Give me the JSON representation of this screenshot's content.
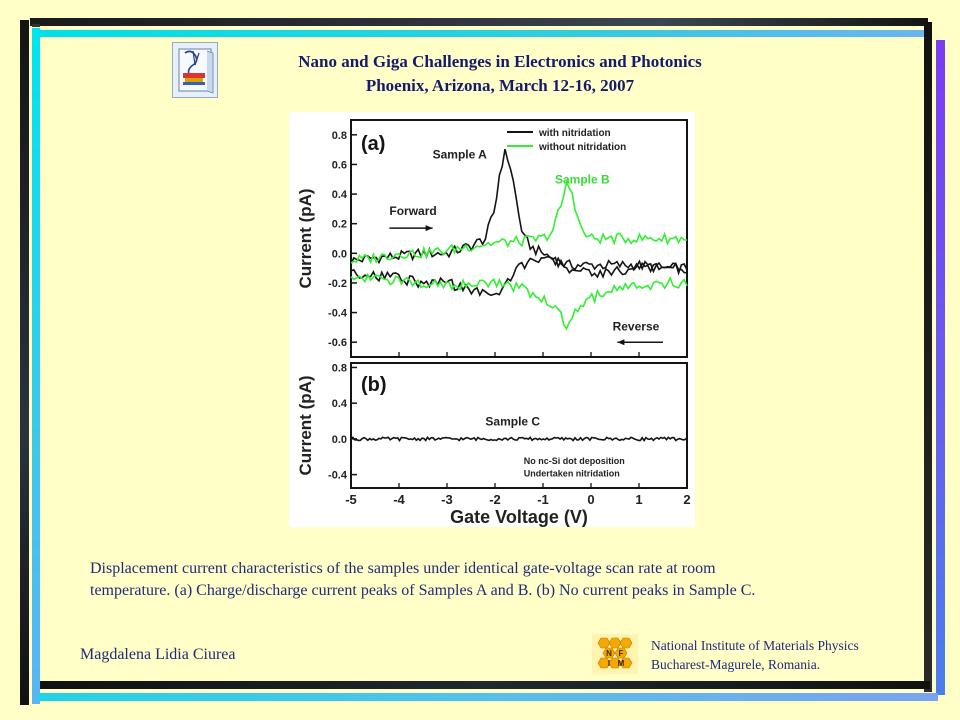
{
  "header": {
    "title_line1": "Nano and Giga Challenges in Electronics and Photonics",
    "title_line2": "Phoenix, Arizona, March 12-16, 2007"
  },
  "caption": {
    "line1": "Displacement current characteristics of the samples under identical gate-voltage scan rate at room",
    "line2": "temperature. (a) Charge/discharge current peaks of Samples A and B. (b) No current peaks in Sample C."
  },
  "footer": {
    "author": "Magdalena Lidia Ciurea",
    "institute_line1": "National Institute of Materials Physics",
    "institute_line2": "Bucharest-Magurele, Romania.",
    "logo_text": [
      "N",
      "F",
      "I",
      "M"
    ]
  },
  "colors": {
    "title": "#151a6e",
    "text": "#202a7a",
    "background": "#ffffc7",
    "series_black": "#141414",
    "series_green": "#33ee33"
  },
  "chart_data": [
    {
      "type": "line",
      "panel_label": "(a)",
      "xlabel": "Gate Voltage (V)",
      "ylabel": "Current (pA)",
      "xlim": [
        -5,
        2
      ],
      "ylim": [
        -0.7,
        0.9
      ],
      "yticks": [
        "0.8",
        "0.6",
        "0.4",
        "0.2",
        "0.0",
        "-0.2",
        "-0.4",
        "-0.6"
      ],
      "ytick_values": [
        0.8,
        0.6,
        0.4,
        0.2,
        0.0,
        -0.2,
        -0.4,
        -0.6
      ],
      "legend": [
        {
          "label": "with nitridation",
          "color": "#141414"
        },
        {
          "label": "without nitridation",
          "color": "#33ee33"
        }
      ],
      "legend_position": "top-right",
      "annotations": [
        {
          "text": "Sample A",
          "x": -3.3,
          "y": 0.64
        },
        {
          "text": "Sample B",
          "x": -0.75,
          "y": 0.47
        },
        {
          "text": "Forward",
          "x": -4.2,
          "y": 0.26
        },
        {
          "text": "Reverse",
          "x": 0.45,
          "y": -0.52
        }
      ],
      "series": [
        {
          "name": "with nitridation",
          "color": "#141414",
          "x": [
            -5,
            -4.5,
            -4,
            -3.5,
            -3,
            -2.5,
            -2.2,
            -2.0,
            -1.9,
            -1.8,
            -1.7,
            -1.6,
            -1.5,
            -1.4,
            -1.2,
            -1.0,
            -0.5,
            0,
            0.5,
            1,
            1.5,
            2
          ],
          "y": [
            -0.05,
            -0.03,
            -0.02,
            0.0,
            0.0,
            0.05,
            0.1,
            0.3,
            0.55,
            0.68,
            0.62,
            0.45,
            0.25,
            0.1,
            0.03,
            0.0,
            -0.08,
            -0.08,
            -0.08,
            -0.08,
            -0.1,
            -0.1
          ]
        },
        {
          "name": "with nitridation (reverse)",
          "color": "#141414",
          "x": [
            2,
            1.5,
            1,
            0.5,
            0,
            -0.5,
            -1.0,
            -1.5,
            -2,
            -2.5,
            -3,
            -3.5,
            -4,
            -4.5,
            -5
          ],
          "y": [
            -0.1,
            -0.1,
            -0.1,
            -0.12,
            -0.13,
            -0.1,
            -0.02,
            -0.1,
            -0.3,
            -0.25,
            -0.2,
            -0.2,
            -0.17,
            -0.15,
            -0.13
          ]
        },
        {
          "name": "without nitridation",
          "color": "#33ee33",
          "x": [
            -5,
            -4.5,
            -4,
            -3.5,
            -3,
            -2.5,
            -2,
            -1.5,
            -1.0,
            -0.8,
            -0.6,
            -0.5,
            -0.4,
            -0.3,
            -0.2,
            0,
            0.5,
            1,
            1.5,
            2
          ],
          "y": [
            -0.05,
            -0.03,
            0.0,
            0.0,
            0.02,
            0.05,
            0.07,
            0.08,
            0.1,
            0.15,
            0.35,
            0.47,
            0.42,
            0.28,
            0.15,
            0.1,
            0.1,
            0.1,
            0.1,
            0.1
          ]
        },
        {
          "name": "without nitridation (reverse)",
          "color": "#33ee33",
          "x": [
            2,
            1.5,
            1,
            0.5,
            0,
            -0.3,
            -0.5,
            -0.7,
            -1.0,
            -1.5,
            -2,
            -2.5,
            -3,
            -3.5,
            -4,
            -4.5,
            -5
          ],
          "y": [
            -0.2,
            -0.2,
            -0.22,
            -0.25,
            -0.3,
            -0.38,
            -0.5,
            -0.38,
            -0.3,
            -0.23,
            -0.2,
            -0.2,
            -0.22,
            -0.2,
            -0.18,
            -0.18,
            -0.15
          ]
        }
      ]
    },
    {
      "type": "line",
      "panel_label": "(b)",
      "xlabel": "Gate Voltage (V)",
      "ylabel": "Current (pA)",
      "xlim": [
        -5,
        2
      ],
      "ylim": [
        -0.55,
        0.85
      ],
      "xticks": [
        "-5",
        "-4",
        "-3",
        "-2",
        "-1",
        "0",
        "1",
        "2"
      ],
      "xtick_values": [
        -5,
        -4,
        -3,
        -2,
        -1,
        0,
        1,
        2
      ],
      "yticks": [
        "0.8",
        "0.4",
        "0.0",
        "-0.4"
      ],
      "ytick_values": [
        0.8,
        0.4,
        0.0,
        -0.4
      ],
      "annotations": [
        {
          "text": "Sample C",
          "x": -2.2,
          "y": 0.15
        },
        {
          "text": "No nc-Si dot deposition",
          "x": -1.4,
          "y": -0.28
        },
        {
          "text": "Undertaken nitridation",
          "x": -1.4,
          "y": -0.42
        }
      ],
      "series": [
        {
          "name": "Sample C",
          "color": "#141414",
          "x": [
            -5,
            -4,
            -3,
            -2,
            -1,
            0,
            1,
            2
          ],
          "y": [
            0.0,
            0.0,
            0.0,
            0.0,
            0.0,
            0.0,
            0.0,
            0.0
          ]
        }
      ]
    }
  ]
}
